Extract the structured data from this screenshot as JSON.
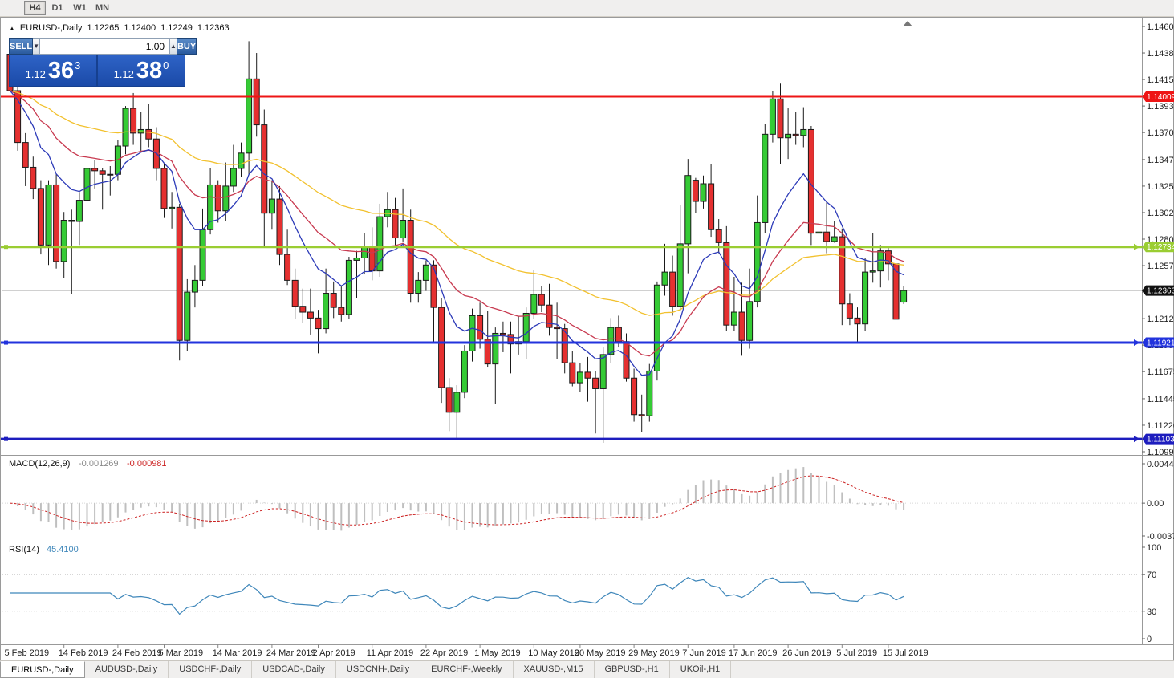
{
  "toolbar": {
    "timeframes": [
      {
        "label": "H4",
        "active": true
      },
      {
        "label": "D1",
        "active": false
      },
      {
        "label": "W1",
        "active": false
      },
      {
        "label": "MN",
        "active": false
      }
    ]
  },
  "chart_header": {
    "symbol": "EURUSD-,Daily",
    "open": "1.12265",
    "high": "1.12400",
    "low": "1.12249",
    "close": "1.12363"
  },
  "trade_panel": {
    "sell_label": "SELL",
    "buy_label": "BUY",
    "volume": "1.00",
    "bid": {
      "prefix": "1.12",
      "pips": "36",
      "sup": "3"
    },
    "ask": {
      "prefix": "1.12",
      "pips": "38",
      "sup": "0"
    }
  },
  "tabs": [
    {
      "label": "EURUSD-,Daily",
      "active": true
    },
    {
      "label": "AUDUSD-,Daily",
      "active": false
    },
    {
      "label": "USDCHF-,Daily",
      "active": false
    },
    {
      "label": "USDCAD-,Daily",
      "active": false
    },
    {
      "label": "USDCNH-,Daily",
      "active": false
    },
    {
      "label": "EURCHF-,Weekly",
      "active": false
    },
    {
      "label": "XAUUSD-,M15",
      "active": false
    },
    {
      "label": "GBPUSD-,H1",
      "active": false
    },
    {
      "label": "UKOil-,H1",
      "active": false
    }
  ],
  "chart_data": {
    "type": "candlestick",
    "symbol": "EURUSD-",
    "timeframe": "Daily",
    "price_axis": {
      "min": 1.10995,
      "max": 1.14605,
      "labels": [
        "1.14605",
        "1.14380",
        "1.14155",
        "1.13930",
        "1.13705",
        "1.13475",
        "1.13250",
        "1.13025",
        "1.12800",
        "1.12575",
        "1.12350",
        "1.12125",
        "1.11900",
        "1.11675",
        "1.11445",
        "1.11220",
        "1.10995"
      ]
    },
    "date_ticks": [
      {
        "i": 0,
        "label": "5 Feb 2019"
      },
      {
        "i": 7,
        "label": "14 Feb 2019"
      },
      {
        "i": 14,
        "label": "24 Feb 2019"
      },
      {
        "i": 20,
        "label": "5 Mar 2019"
      },
      {
        "i": 27,
        "label": "14 Mar 2019"
      },
      {
        "i": 34,
        "label": "24 Mar 2019"
      },
      {
        "i": 40,
        "label": "2 Apr 2019"
      },
      {
        "i": 47,
        "label": "11 Apr 2019"
      },
      {
        "i": 54,
        "label": "22 Apr 2019"
      },
      {
        "i": 61,
        "label": "1 May 2019"
      },
      {
        "i": 68,
        "label": "10 May 2019"
      },
      {
        "i": 74,
        "label": "20 May 2019"
      },
      {
        "i": 81,
        "label": "29 May 2019"
      },
      {
        "i": 88,
        "label": "7 Jun 2019"
      },
      {
        "i": 94,
        "label": "17 Jun 2019"
      },
      {
        "i": 101,
        "label": "26 Jun 2019"
      },
      {
        "i": 108,
        "label": "5 Jul 2019"
      },
      {
        "i": 114,
        "label": "15 Jul 2019"
      }
    ],
    "candles": [
      [
        1.1437,
        1.1443,
        1.1401,
        1.1406
      ],
      [
        1.1406,
        1.141,
        1.1355,
        1.1362
      ],
      [
        1.1362,
        1.137,
        1.1325,
        1.1341
      ],
      [
        1.1341,
        1.135,
        1.1314,
        1.1323
      ],
      [
        1.1323,
        1.133,
        1.1267,
        1.1275
      ],
      [
        1.1275,
        1.133,
        1.1258,
        1.1326
      ],
      [
        1.1326,
        1.1335,
        1.1255,
        1.1261
      ],
      [
        1.1261,
        1.1303,
        1.1247,
        1.1296
      ],
      [
        1.1296,
        1.1305,
        1.1233,
        1.1295
      ],
      [
        1.1295,
        1.132,
        1.1275,
        1.1313
      ],
      [
        1.1313,
        1.1345,
        1.1303,
        1.134
      ],
      [
        1.134,
        1.1347,
        1.1323,
        1.1338
      ],
      [
        1.1338,
        1.134,
        1.1305,
        1.1335
      ],
      [
        1.1335,
        1.1342,
        1.1317,
        1.1335
      ],
      [
        1.1335,
        1.1364,
        1.133,
        1.1359
      ],
      [
        1.1359,
        1.1393,
        1.1352,
        1.1391
      ],
      [
        1.1391,
        1.1404,
        1.136,
        1.137
      ],
      [
        1.137,
        1.1388,
        1.1355,
        1.1373
      ],
      [
        1.1373,
        1.1395,
        1.1358,
        1.1365
      ],
      [
        1.1365,
        1.1375,
        1.133,
        1.134
      ],
      [
        1.134,
        1.1344,
        1.1298,
        1.1306
      ],
      [
        1.1306,
        1.132,
        1.1289,
        1.1307
      ],
      [
        1.1307,
        1.131,
        1.1177,
        1.1194
      ],
      [
        1.1194,
        1.1246,
        1.1185,
        1.1235
      ],
      [
        1.1235,
        1.1258,
        1.1222,
        1.1245
      ],
      [
        1.1245,
        1.1306,
        1.124,
        1.1288
      ],
      [
        1.1288,
        1.134,
        1.1284,
        1.1326
      ],
      [
        1.1326,
        1.133,
        1.1294,
        1.1304
      ],
      [
        1.1304,
        1.1345,
        1.1295,
        1.1325
      ],
      [
        1.1325,
        1.136,
        1.132,
        1.134
      ],
      [
        1.134,
        1.1362,
        1.1333,
        1.1353
      ],
      [
        1.1353,
        1.1448,
        1.1335,
        1.1416
      ],
      [
        1.1416,
        1.1438,
        1.1367,
        1.1377
      ],
      [
        1.1377,
        1.139,
        1.1273,
        1.1302
      ],
      [
        1.1302,
        1.133,
        1.1288,
        1.1314
      ],
      [
        1.1314,
        1.1325,
        1.1258,
        1.1267
      ],
      [
        1.1267,
        1.1288,
        1.1241,
        1.1245
      ],
      [
        1.1245,
        1.1255,
        1.1212,
        1.1223
      ],
      [
        1.1223,
        1.1238,
        1.1209,
        1.1218
      ],
      [
        1.1218,
        1.1238,
        1.1199,
        1.1213
      ],
      [
        1.1213,
        1.122,
        1.1183,
        1.1204
      ],
      [
        1.1204,
        1.1255,
        1.12,
        1.1234
      ],
      [
        1.1234,
        1.1244,
        1.1213,
        1.1222
      ],
      [
        1.1222,
        1.124,
        1.121,
        1.1216
      ],
      [
        1.1216,
        1.1265,
        1.1212,
        1.1262
      ],
      [
        1.1262,
        1.127,
        1.123,
        1.1264
      ],
      [
        1.1264,
        1.1285,
        1.125,
        1.1273
      ],
      [
        1.1273,
        1.129,
        1.1245,
        1.1253
      ],
      [
        1.1253,
        1.131,
        1.1248,
        1.1299
      ],
      [
        1.1299,
        1.132,
        1.129,
        1.1305
      ],
      [
        1.1305,
        1.1315,
        1.1275,
        1.1281
      ],
      [
        1.1281,
        1.1323,
        1.1278,
        1.1296
      ],
      [
        1.1296,
        1.1305,
        1.1226,
        1.1234
      ],
      [
        1.1234,
        1.1252,
        1.1226,
        1.1245
      ],
      [
        1.1245,
        1.1262,
        1.1236,
        1.1258
      ],
      [
        1.1258,
        1.1262,
        1.1192,
        1.1222
      ],
      [
        1.1222,
        1.123,
        1.1141,
        1.1154
      ],
      [
        1.1154,
        1.1162,
        1.1117,
        1.1133
      ],
      [
        1.1133,
        1.1156,
        1.1111,
        1.115
      ],
      [
        1.115,
        1.119,
        1.1145,
        1.1185
      ],
      [
        1.1185,
        1.1221,
        1.1176,
        1.1215
      ],
      [
        1.1215,
        1.1226,
        1.1187,
        1.1195
      ],
      [
        1.1195,
        1.1219,
        1.1171,
        1.1174
      ],
      [
        1.1174,
        1.1205,
        1.114,
        1.12
      ],
      [
        1.12,
        1.121,
        1.1184,
        1.1199
      ],
      [
        1.1199,
        1.121,
        1.1166,
        1.1191
      ],
      [
        1.1191,
        1.1215,
        1.1182,
        1.1193
      ],
      [
        1.1193,
        1.1222,
        1.1178,
        1.1217
      ],
      [
        1.1217,
        1.1254,
        1.1212,
        1.1233
      ],
      [
        1.1233,
        1.124,
        1.1218,
        1.1224
      ],
      [
        1.1224,
        1.1242,
        1.1198,
        1.1205
      ],
      [
        1.1205,
        1.1226,
        1.1178,
        1.1204
      ],
      [
        1.1204,
        1.1208,
        1.1166,
        1.1175
      ],
      [
        1.1175,
        1.1185,
        1.1155,
        1.1158
      ],
      [
        1.1158,
        1.1175,
        1.115,
        1.1167
      ],
      [
        1.1167,
        1.118,
        1.1142,
        1.1162
      ],
      [
        1.1162,
        1.1168,
        1.1115,
        1.1153
      ],
      [
        1.1153,
        1.1188,
        1.1107,
        1.1182
      ],
      [
        1.1182,
        1.1213,
        1.1175,
        1.1205
      ],
      [
        1.1205,
        1.1215,
        1.1188,
        1.1193
      ],
      [
        1.1193,
        1.12,
        1.1159,
        1.1162
      ],
      [
        1.1162,
        1.117,
        1.1125,
        1.1131
      ],
      [
        1.1131,
        1.1148,
        1.1116,
        1.113
      ],
      [
        1.113,
        1.1174,
        1.1125,
        1.1168
      ],
      [
        1.1168,
        1.1244,
        1.116,
        1.1241
      ],
      [
        1.1241,
        1.1276,
        1.1232,
        1.1252
      ],
      [
        1.1252,
        1.1266,
        1.1215,
        1.1223
      ],
      [
        1.1223,
        1.1309,
        1.1219,
        1.1276
      ],
      [
        1.1276,
        1.1348,
        1.1251,
        1.1334
      ],
      [
        1.133,
        1.1332,
        1.1302,
        1.1312
      ],
      [
        1.1312,
        1.1334,
        1.1306,
        1.1327
      ],
      [
        1.1327,
        1.1344,
        1.1282,
        1.1288
      ],
      [
        1.1288,
        1.1297,
        1.1268,
        1.1277
      ],
      [
        1.1277,
        1.1291,
        1.1202,
        1.1207
      ],
      [
        1.1207,
        1.1248,
        1.1202,
        1.1218
      ],
      [
        1.1218,
        1.1243,
        1.1181,
        1.1194
      ],
      [
        1.1194,
        1.1255,
        1.1187,
        1.1227
      ],
      [
        1.1227,
        1.1317,
        1.1222,
        1.1294
      ],
      [
        1.1294,
        1.1378,
        1.1285,
        1.1369
      ],
      [
        1.1369,
        1.1406,
        1.1362,
        1.1399
      ],
      [
        1.1399,
        1.1412,
        1.1344,
        1.1366
      ],
      [
        1.1366,
        1.1391,
        1.1348,
        1.1369
      ],
      [
        1.1369,
        1.1388,
        1.136,
        1.1368
      ],
      [
        1.1368,
        1.1392,
        1.1358,
        1.1373
      ],
      [
        1.1373,
        1.1376,
        1.1275,
        1.1285
      ],
      [
        1.1285,
        1.1322,
        1.1275,
        1.1286
      ],
      [
        1.1286,
        1.1312,
        1.1268,
        1.1278
      ],
      [
        1.1278,
        1.1295,
        1.1277,
        1.1282
      ],
      [
        1.1282,
        1.1289,
        1.1207,
        1.1225
      ],
      [
        1.1225,
        1.1234,
        1.1207,
        1.1213
      ],
      [
        1.1213,
        1.1222,
        1.1193,
        1.1208
      ],
      [
        1.1208,
        1.1264,
        1.1202,
        1.1252
      ],
      [
        1.1252,
        1.1285,
        1.1243,
        1.1253
      ],
      [
        1.1253,
        1.1275,
        1.1239,
        1.127
      ],
      [
        1.127,
        1.1274,
        1.1245,
        1.1259
      ],
      [
        1.1259,
        1.1264,
        1.1202,
        1.1212
      ],
      [
        1.12265,
        1.124,
        1.12249,
        1.12363
      ]
    ],
    "colors": {
      "up": "#35cb35",
      "down": "#e53030",
      "outline": "#1a1a1a",
      "axis_text": "#222222",
      "background": "#ffffff"
    },
    "moving_averages": [
      {
        "type": "ema",
        "period": 10,
        "color": "#2c3ab8"
      },
      {
        "type": "ema",
        "period": 22,
        "color": "#c83a50"
      },
      {
        "type": "ema",
        "period": 50,
        "color": "#f2c12e"
      }
    ],
    "hlines": [
      {
        "price": 1.14009,
        "label": "1.14009",
        "color": "#ee1515",
        "width": 2
      },
      {
        "price": 1.12734,
        "label": "1.12734",
        "color": "#9acd32",
        "width": 3
      },
      {
        "price": 1.11921,
        "label": "1.11921",
        "color": "#2233dd",
        "width": 3
      },
      {
        "price": 1.11103,
        "label": "1.11103",
        "color": "#1d1dbe",
        "width": 3
      }
    ],
    "current_price": {
      "value": 1.12363,
      "label": "1.12363",
      "line_color": "#b4b4b4",
      "tag_color": "#111111"
    },
    "indicators": {
      "macd": {
        "label": "MACD(12,26,9)",
        "fast": 12,
        "slow": 26,
        "signal": 9,
        "main_value": "-0.001269",
        "signal_value": "-0.000981",
        "axis_max": 0.004465,
        "axis_min": -0.003715,
        "axis_labels": [
          "0.004465",
          "0.00",
          "-0.003715"
        ],
        "histogram_color": "#bfbfbf",
        "signal_color": "#cc2222"
      },
      "rsi": {
        "label": "RSI(14)",
        "period": 14,
        "value": "45.4100",
        "axis_labels": [
          "100",
          "70",
          "30",
          "0"
        ],
        "levels": [
          70,
          30
        ],
        "line_color": "#3f87ba"
      }
    }
  }
}
